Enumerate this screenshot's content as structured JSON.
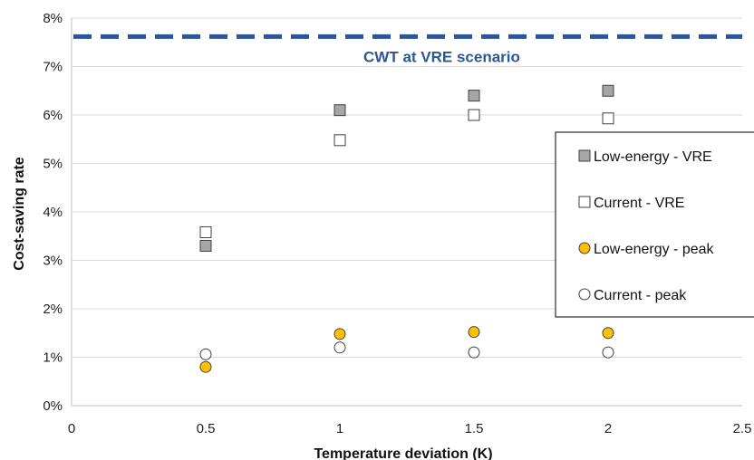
{
  "chart_data": {
    "type": "scatter",
    "xlabel": "Temperature deviation (K)",
    "ylabel": "Cost-saving rate",
    "xlim": [
      0,
      2.5
    ],
    "ylim": [
      0,
      8
    ],
    "xticks": [
      "0",
      "0.5",
      "1",
      "1.5",
      "2",
      "2.5"
    ],
    "yticks": [
      "0%",
      "1%",
      "2%",
      "3%",
      "4%",
      "5%",
      "6%",
      "7%",
      "8%"
    ],
    "grid": "horizontal",
    "legend_position": "right",
    "reference_line": {
      "label": "CWT at VRE scenario",
      "value": 7.62,
      "color": "#2f5597",
      "style": "dashed"
    },
    "series": [
      {
        "name": "Low-energy - VRE",
        "marker": "square",
        "fill": "#a6a6a6",
        "x": [
          0.5,
          1,
          1.5,
          2
        ],
        "y": [
          3.3,
          6.1,
          6.4,
          6.5
        ]
      },
      {
        "name": "Current - VRE",
        "marker": "square",
        "fill": "#ffffff",
        "x": [
          0.5,
          1,
          1.5,
          2
        ],
        "y": [
          3.58,
          5.48,
          6.0,
          5.93
        ]
      },
      {
        "name": "Low-energy - peak",
        "marker": "circle",
        "fill": "#ffc000",
        "x": [
          0.5,
          1,
          1.5,
          2
        ],
        "y": [
          0.8,
          1.48,
          1.52,
          1.5
        ]
      },
      {
        "name": "Current - peak",
        "marker": "circle",
        "fill": "#ffffff",
        "x": [
          0.5,
          1,
          1.5,
          2
        ],
        "y": [
          1.06,
          1.2,
          1.1,
          1.1
        ]
      }
    ]
  }
}
